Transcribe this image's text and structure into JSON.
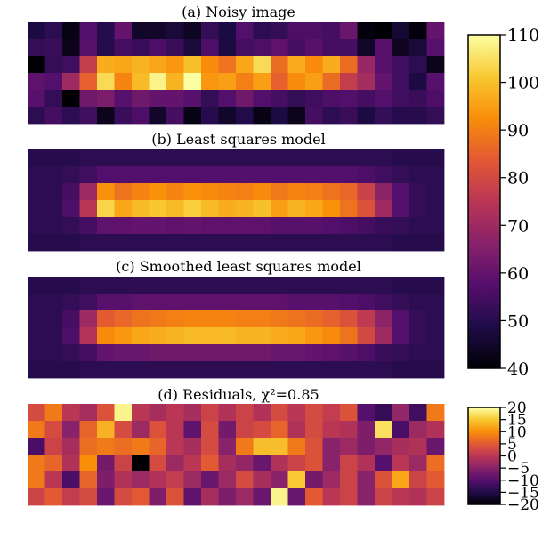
{
  "chart_data": [
    {
      "type": "heatmap",
      "title": "(a) Noisy image",
      "rows": 6,
      "cols": 24,
      "colormap": "inferno",
      "clim": [
        40,
        110
      ],
      "values": [
        [
          48,
          51,
          42,
          57,
          50,
          60,
          45,
          45,
          47,
          44,
          52,
          48,
          57,
          51,
          52,
          56,
          56,
          55,
          61,
          41,
          40,
          46,
          41,
          60
        ],
        [
          52,
          53,
          43,
          58,
          50,
          55,
          53,
          56,
          53,
          47,
          56,
          48,
          55,
          56,
          59,
          55,
          58,
          55,
          55,
          45,
          58,
          44,
          47,
          58
        ],
        [
          40,
          52,
          54,
          77,
          97,
          96,
          98,
          96,
          94,
          100,
          92,
          88,
          96,
          104,
          87,
          97,
          92,
          97,
          87,
          69,
          58,
          54,
          51,
          43
        ],
        [
          59,
          57,
          70,
          85,
          104,
          91,
          99,
          108,
          98,
          112,
          94,
          95,
          90,
          95,
          85,
          92,
          95,
          87,
          77,
          71,
          60,
          54,
          48,
          58
        ],
        [
          58,
          52,
          40,
          62,
          64,
          58,
          62,
          60,
          60,
          58,
          52,
          57,
          62,
          57,
          55,
          52,
          54,
          56,
          57,
          55,
          57,
          54,
          53,
          56
        ],
        [
          51,
          55,
          51,
          54,
          43,
          53,
          56,
          45,
          55,
          42,
          50,
          45,
          49,
          42,
          48,
          43,
          55,
          51,
          53,
          48,
          52,
          50,
          50,
          52
        ]
      ]
    },
    {
      "type": "heatmap",
      "title": "(b) Least squares model",
      "rows": 6,
      "cols": 24,
      "colormap": "inferno",
      "clim": [
        40,
        110
      ],
      "values": [
        [
          50,
          50,
          50,
          51,
          51,
          51,
          51,
          51,
          51,
          51,
          51,
          51,
          51,
          51,
          51,
          51,
          51,
          51,
          51,
          51,
          51,
          50,
          50,
          50
        ],
        [
          51,
          51,
          52,
          54,
          57,
          57,
          57,
          57,
          57,
          57,
          57,
          57,
          57,
          57,
          57,
          57,
          57,
          57,
          57,
          56,
          54,
          52,
          51,
          51
        ],
        [
          51,
          51,
          55,
          70,
          93,
          88,
          91,
          93,
          91,
          93,
          92,
          91,
          90,
          92,
          89,
          91,
          90,
          88,
          86,
          78,
          67,
          57,
          52,
          51
        ],
        [
          51,
          51,
          56,
          75,
          103,
          96,
          99,
          101,
          99,
          102,
          99,
          97,
          98,
          100,
          95,
          98,
          96,
          93,
          88,
          82,
          70,
          57,
          52,
          51
        ],
        [
          51,
          51,
          52,
          55,
          59,
          59,
          60,
          60,
          59,
          60,
          59,
          59,
          59,
          59,
          58,
          58,
          58,
          57,
          56,
          55,
          53,
          52,
          51,
          51
        ],
        [
          50,
          50,
          50,
          51,
          51,
          51,
          51,
          51,
          51,
          51,
          51,
          51,
          51,
          51,
          51,
          51,
          51,
          51,
          51,
          51,
          51,
          50,
          50,
          50
        ]
      ]
    },
    {
      "type": "heatmap",
      "title": "(c) Smoothed least squares model",
      "rows": 6,
      "cols": 24,
      "colormap": "inferno",
      "clim": [
        40,
        110
      ],
      "values": [
        [
          50,
          50,
          50,
          51,
          51,
          51,
          51,
          51,
          51,
          51,
          51,
          51,
          51,
          51,
          51,
          51,
          51,
          51,
          51,
          51,
          51,
          50,
          50,
          50
        ],
        [
          51,
          51,
          52,
          54,
          58,
          58,
          59,
          59,
          59,
          59,
          59,
          59,
          59,
          59,
          59,
          58,
          58,
          58,
          57,
          56,
          54,
          52,
          51,
          51
        ],
        [
          51,
          51,
          55,
          70,
          84,
          86,
          88,
          89,
          90,
          91,
          91,
          91,
          90,
          90,
          89,
          88,
          87,
          85,
          82,
          76,
          67,
          57,
          52,
          51
        ],
        [
          51,
          51,
          56,
          74,
          92,
          94,
          96,
          97,
          98,
          99,
          99,
          99,
          98,
          98,
          97,
          96,
          94,
          92,
          88,
          80,
          70,
          57,
          52,
          51
        ],
        [
          51,
          51,
          52,
          55,
          60,
          61,
          61,
          62,
          62,
          62,
          62,
          62,
          62,
          62,
          61,
          61,
          60,
          59,
          58,
          56,
          53,
          52,
          51,
          51
        ],
        [
          50,
          50,
          50,
          51,
          51,
          51,
          51,
          51,
          51,
          51,
          51,
          51,
          51,
          51,
          51,
          51,
          51,
          51,
          51,
          51,
          51,
          50,
          50,
          50
        ]
      ]
    },
    {
      "type": "heatmap",
      "title": "(d) Residuals, χ²=0.85",
      "rows": 6,
      "cols": 24,
      "colormap": "inferno",
      "clim": [
        -20,
        20
      ],
      "values": [
        [
          3,
          8,
          0,
          -2,
          4,
          19,
          0,
          -2,
          0,
          -2,
          2,
          -1,
          2,
          -1,
          3,
          0,
          3,
          1,
          4,
          -10,
          -13,
          -4,
          -12,
          8
        ],
        [
          8,
          3,
          -5,
          6,
          13,
          3,
          -3,
          4,
          0,
          -9,
          3,
          -7,
          2,
          3,
          6,
          -1,
          3,
          0,
          -1,
          -6,
          17,
          -11,
          -3,
          -1
        ],
        [
          -11,
          2,
          -2,
          7,
          8,
          7,
          8,
          6,
          0,
          -2,
          3,
          -5,
          8,
          14,
          14,
          8,
          4,
          -5,
          -3,
          -6,
          -4,
          -2,
          -1,
          -8
        ],
        [
          8,
          6,
          -1,
          10,
          -7,
          2,
          -20,
          3,
          -3,
          0,
          5,
          -2,
          -4,
          -8,
          -1,
          2,
          4,
          -5,
          2,
          -1,
          -10,
          0,
          -3,
          7
        ],
        [
          8,
          0,
          -11,
          6,
          -6,
          -1,
          -3,
          -1,
          1,
          -3,
          -8,
          -3,
          3,
          -2,
          -5,
          15,
          -7,
          -3,
          2,
          -5,
          4,
          12,
          2,
          5
        ],
        [
          2,
          5,
          1,
          3,
          -8,
          3,
          5,
          -6,
          4,
          -9,
          -2,
          -6,
          -3,
          -8,
          19,
          -8,
          5,
          0,
          2,
          -5,
          2,
          0,
          -1,
          2
        ]
      ]
    }
  ],
  "colorbars": [
    {
      "ticks": [
        "110",
        "100",
        "90",
        "80",
        "70",
        "60",
        "50",
        "40"
      ],
      "tick_values": [
        110,
        100,
        90,
        80,
        70,
        60,
        50,
        40
      ],
      "clim": [
        40,
        110
      ]
    },
    {
      "ticks": [
        "20",
        "15",
        "10",
        "5",
        "0",
        "−5",
        "−10",
        "−15",
        "−20"
      ],
      "tick_values": [
        20,
        15,
        10,
        5,
        0,
        -5,
        -10,
        -15,
        -20
      ],
      "clim": [
        -20,
        20
      ]
    }
  ]
}
